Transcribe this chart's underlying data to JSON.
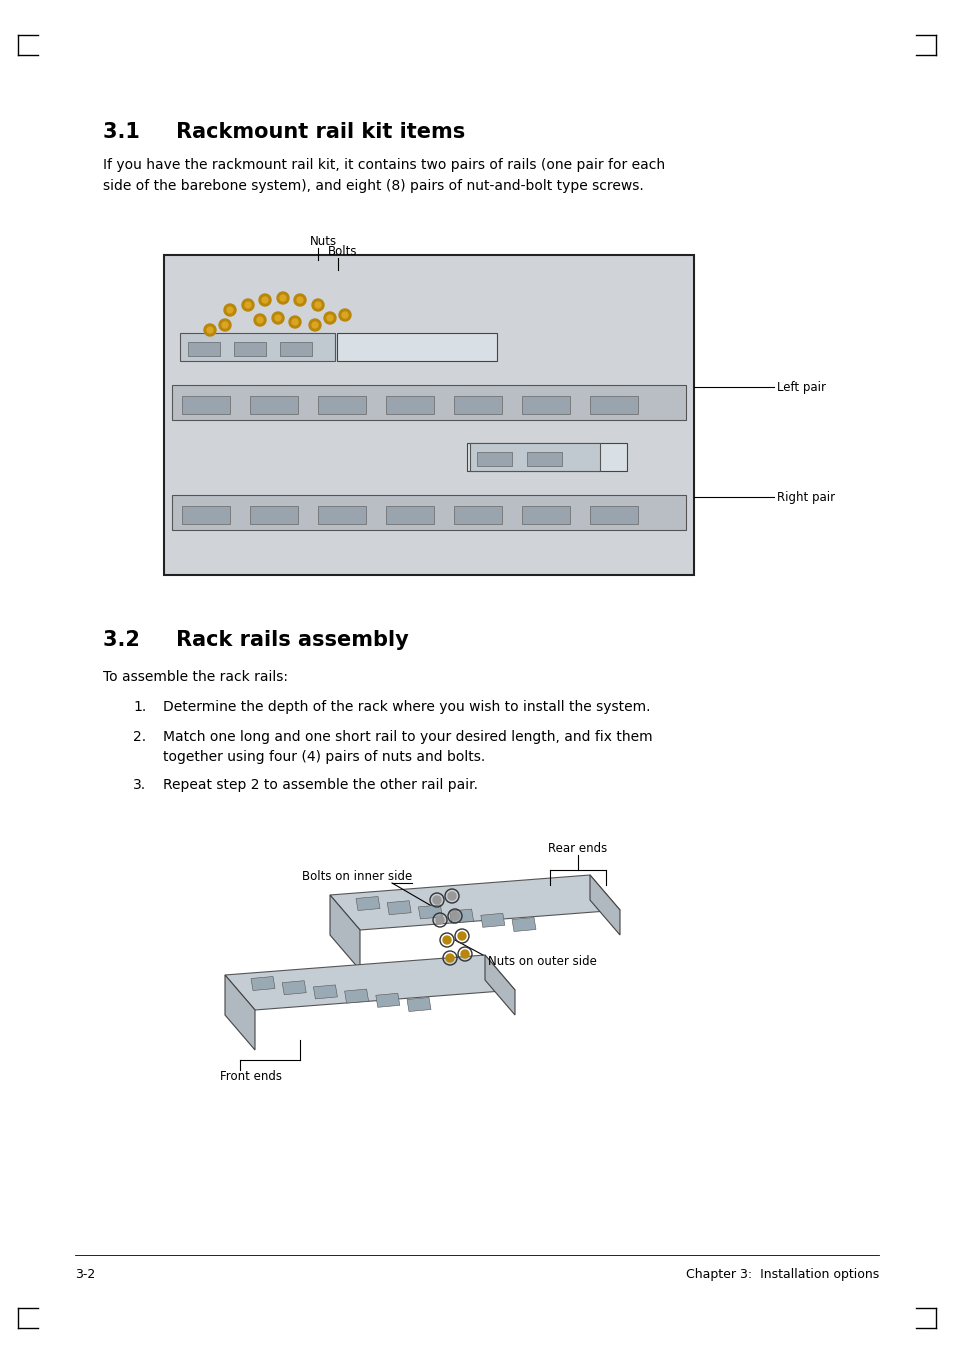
{
  "bg_color": "#ffffff",
  "section1_title": "3.1     Rackmount rail kit items",
  "section1_body": "If you have the rackmount rail kit, it contains two pairs of rails (one pair for each\nside of the barebone system), and eight (8) pairs of nut-and-bolt type screws.",
  "section2_title": "3.2     Rack rails assembly",
  "section2_intro": "To assemble the rack rails:",
  "section2_steps": [
    "Determine the depth of the rack where you wish to install the system.",
    "Match one long and one short rail to your desired length, and fix them\ntogether using four (4) pairs of nuts and bolts.",
    "Repeat step 2 to assemble the other rail pair."
  ],
  "footer_left": "3-2",
  "footer_right": "Chapter 3:  Installation options"
}
